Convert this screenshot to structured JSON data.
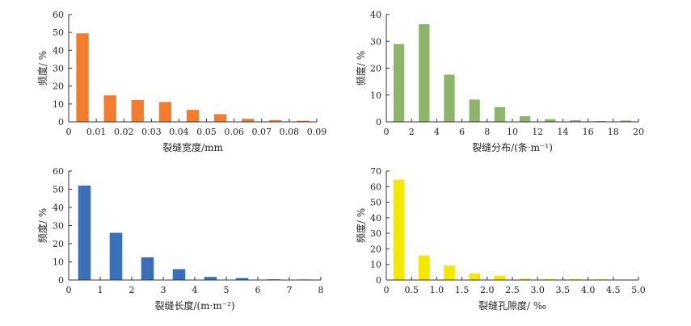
{
  "chart_data": [
    {
      "type": "bar",
      "ylabel": "频度/ %",
      "xlabel": "裂缝宽度/mm",
      "color": "#f47c2d",
      "xlim": [
        0,
        0.09
      ],
      "ylim": [
        0,
        60
      ],
      "xticks": [
        "0",
        "0.01",
        "0.02",
        "0.03",
        "0.04",
        "0.05",
        "0.06",
        "0.07",
        "0.08",
        "0.09"
      ],
      "yticks": [
        "0",
        "10",
        "20",
        "30",
        "40",
        "50",
        "60"
      ],
      "x": [
        0.005,
        0.015,
        0.025,
        0.035,
        0.045,
        0.055,
        0.065,
        0.075,
        0.085
      ],
      "values": [
        49.5,
        14.8,
        12.2,
        11.1,
        6.7,
        4.3,
        1.7,
        1.0,
        0.6
      ],
      "bar_width": 0.0045
    },
    {
      "type": "bar",
      "ylabel": "频度/ %",
      "xlabel": "裂缝分布/(条·m⁻¹)",
      "color": "#8db56a",
      "xlim": [
        0,
        20
      ],
      "ylim": [
        0,
        40
      ],
      "xticks": [
        "0",
        "2",
        "4",
        "6",
        "8",
        "10",
        "12",
        "14",
        "16",
        "18",
        "20"
      ],
      "yticks": [
        "0",
        "10",
        "20",
        "30",
        "40"
      ],
      "x": [
        1,
        3,
        5,
        7,
        9,
        11,
        13,
        15,
        17,
        19
      ],
      "values": [
        29.0,
        36.4,
        17.6,
        8.3,
        5.5,
        2.1,
        1.0,
        0.6,
        0.3,
        0.5
      ],
      "bar_width": 0.85
    },
    {
      "type": "bar",
      "ylabel": "频度/ %",
      "xlabel": "裂缝长度/(m·m⁻²)",
      "color": "#3a70b8",
      "xlim": [
        0,
        8
      ],
      "ylim": [
        0,
        60
      ],
      "xticks": [
        "0",
        "1",
        "2",
        "3",
        "4",
        "5",
        "6",
        "7",
        "8"
      ],
      "yticks": [
        "0",
        "10",
        "20",
        "30",
        "40",
        "50",
        "60"
      ],
      "x": [
        0.5,
        1.5,
        2.5,
        3.5,
        4.5,
        5.5,
        6.5,
        7.5
      ],
      "values": [
        52.0,
        26.0,
        12.5,
        6.0,
        1.7,
        1.1,
        0.4,
        0.3
      ],
      "bar_width": 0.4
    },
    {
      "type": "bar",
      "ylabel": "频度/ %",
      "xlabel": "裂缝孔隙度/ ‰",
      "color": "#f4e800",
      "xlim": [
        0,
        5
      ],
      "ylim": [
        0,
        70
      ],
      "xticks": [
        "0",
        "0.5",
        "1.0",
        "1.5",
        "2.0",
        "2.5",
        "3.0",
        "3.5",
        "4.0",
        "4.5",
        "5.0"
      ],
      "yticks": [
        "0",
        "10",
        "20",
        "30",
        "40",
        "50",
        "60",
        "70"
      ],
      "x": [
        0.25,
        0.75,
        1.25,
        1.75,
        2.25,
        2.75,
        3.25,
        3.75,
        4.25,
        4.75
      ],
      "values": [
        64.5,
        15.8,
        9.3,
        4.3,
        2.8,
        1.0,
        0.6,
        0.5,
        0.4,
        0.3
      ],
      "bar_width": 0.22
    }
  ]
}
